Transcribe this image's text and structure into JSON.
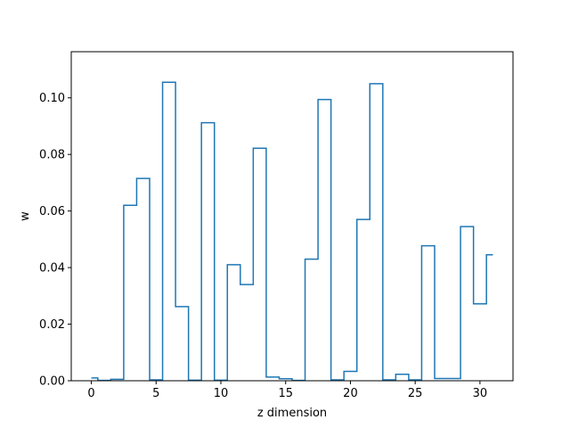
{
  "chart_data": {
    "type": "line",
    "drawstyle": "steps-mid",
    "title": "",
    "xlabel": "z dimension",
    "ylabel": "w",
    "xlim": [
      -1.55,
      32.55
    ],
    "ylim": [
      0,
      0.1163
    ],
    "xticks": [
      0,
      5,
      10,
      15,
      20,
      25,
      30
    ],
    "xtick_labels": [
      "0",
      "5",
      "10",
      "15",
      "20",
      "25",
      "30"
    ],
    "yticks": [
      0,
      0.02,
      0.04,
      0.06,
      0.08,
      0.1
    ],
    "ytick_labels": [
      "0.00",
      "0.02",
      "0.04",
      "0.06",
      "0.08",
      "0.10"
    ],
    "grid": false,
    "line_color": "#1f77b4",
    "series": [
      {
        "x": [
          0,
          1,
          2,
          3,
          4,
          5,
          6,
          7,
          8,
          9,
          10,
          11,
          12,
          13,
          14,
          15,
          16,
          17,
          18,
          19,
          20,
          21,
          22,
          23,
          24,
          25,
          26,
          27,
          28,
          29,
          30,
          31
        ],
        "values": [
          0.001,
          0.0001,
          0.0005,
          0.062,
          0.0715,
          0.0003,
          0.1055,
          0.0262,
          0.0002,
          0.0912,
          0.0002,
          0.041,
          0.034,
          0.0822,
          0.0013,
          0.0007,
          0.0001,
          0.043,
          0.0994,
          0.0003,
          0.0033,
          0.057,
          0.105,
          0.0003,
          0.0023,
          0.0003,
          0.0477,
          0.0008,
          0.0008,
          0.0545,
          0.0272,
          0.0445
        ]
      }
    ]
  }
}
